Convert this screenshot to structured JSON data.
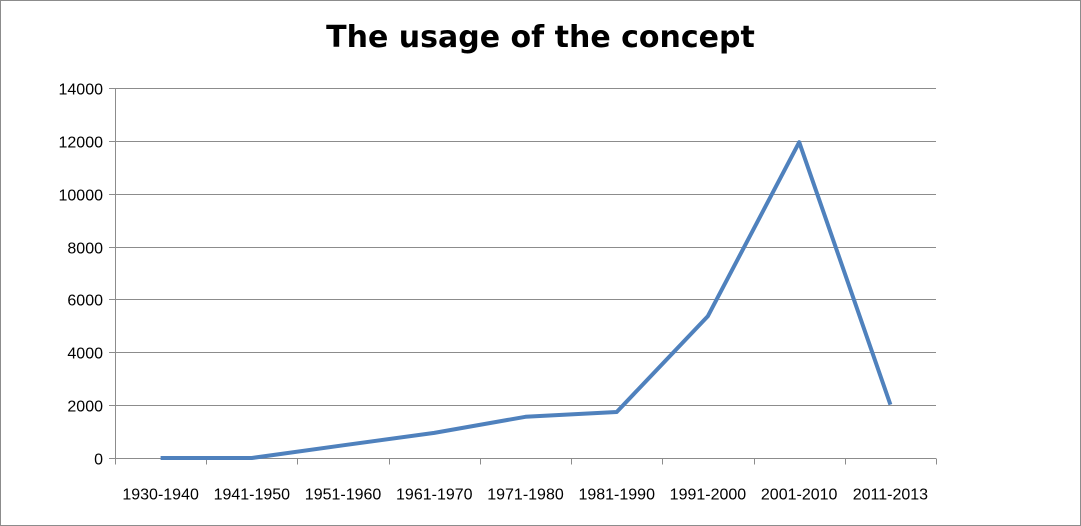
{
  "chart_data": {
    "type": "line",
    "title": "The usage of the concept",
    "xlabel": "",
    "ylabel": "",
    "categories": [
      "1930-1940",
      "1941-1950",
      "1951-1960",
      "1961-1970",
      "1971-1980",
      "1981-1990",
      "1991-2000",
      "2001-2010",
      "2011-2013"
    ],
    "series": [
      {
        "values": [
          0,
          0,
          480,
          950,
          1560,
          1740,
          5370,
          11950,
          2020
        ],
        "color": "#4f81bd"
      }
    ],
    "ylim": [
      0,
      14000
    ],
    "yticks": [
      0,
      2000,
      4000,
      6000,
      8000,
      10000,
      12000,
      14000
    ],
    "grid": true,
    "legend": "none",
    "colors": {
      "line": "#4f81bd",
      "grid": "#8c8c8c",
      "axis": "#8c8c8c"
    }
  }
}
